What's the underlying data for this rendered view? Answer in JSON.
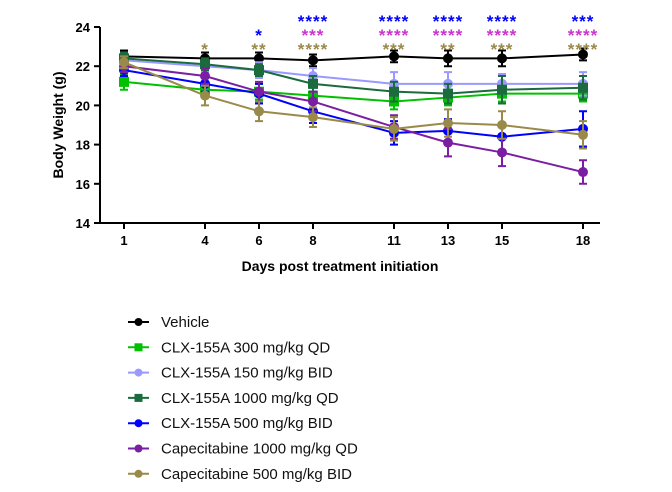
{
  "chart_data": {
    "type": "line",
    "xlabel": "Days post treatment initiation",
    "ylabel": "Body  Weight (g)",
    "x": [
      1,
      4,
      6,
      8,
      11,
      13,
      15,
      18
    ],
    "xticks": [
      "1",
      "4",
      "6",
      "8",
      "11",
      "13",
      "15",
      "18"
    ],
    "ylim": [
      14,
      24
    ],
    "yticks": [
      "14",
      "16",
      "18",
      "20",
      "22",
      "24"
    ],
    "grid": false,
    "legend_position": "bottom",
    "series": [
      {
        "name": "Vehicle",
        "color": "#000000",
        "marker": "circle",
        "values": [
          22.5,
          22.4,
          22.4,
          22.3,
          22.5,
          22.4,
          22.4,
          22.6
        ],
        "errors": [
          0.3,
          0.3,
          0.3,
          0.3,
          0.3,
          0.4,
          0.4,
          0.3
        ]
      },
      {
        "name": "CLX-155A 300 mg/kg QD",
        "color": "#00c000",
        "marker": "square",
        "values": [
          21.2,
          20.8,
          20.7,
          20.5,
          20.2,
          20.4,
          20.6,
          20.6
        ],
        "errors": [
          0.4,
          0.4,
          0.4,
          0.4,
          0.4,
          0.4,
          0.4,
          0.4
        ]
      },
      {
        "name": "CLX-155A 150 mg/kg BID",
        "color": "#9999ff",
        "marker": "circle",
        "values": [
          22.3,
          22.0,
          21.8,
          21.5,
          21.1,
          21.1,
          21.1,
          21.1
        ],
        "errors": [
          0.3,
          0.3,
          0.4,
          0.4,
          0.6,
          0.6,
          0.5,
          0.6
        ]
      },
      {
        "name": "CLX-155A 1000 mg/kg QD",
        "color": "#1b6b3e",
        "marker": "square",
        "values": [
          22.4,
          22.1,
          21.8,
          21.1,
          20.7,
          20.6,
          20.8,
          20.9
        ],
        "errors": [
          0.3,
          0.3,
          0.3,
          0.4,
          0.5,
          0.5,
          0.7,
          0.6
        ]
      },
      {
        "name": "CLX-155A 500 mg/kg BID",
        "color": "#0000ff",
        "marker": "circle",
        "values": [
          21.8,
          21.1,
          20.6,
          19.7,
          18.6,
          18.7,
          18.4,
          18.8
        ],
        "errors": [
          0.3,
          0.4,
          0.5,
          0.6,
          0.6,
          0.6,
          0.7,
          0.9
        ]
      },
      {
        "name": "Capecitabine 1000 mg/kg QD",
        "color": "#7b1fa2",
        "marker": "circle",
        "values": [
          22.0,
          21.5,
          20.7,
          20.2,
          18.9,
          18.1,
          17.6,
          16.6
        ],
        "errors": [
          0.3,
          0.4,
          0.5,
          0.5,
          0.6,
          0.7,
          0.7,
          0.6
        ]
      },
      {
        "name": "Capecitabine 500 mg/kg BID",
        "color": "#9a8a4a",
        "marker": "circle",
        "values": [
          22.2,
          20.5,
          19.7,
          19.4,
          18.8,
          19.1,
          19.0,
          18.5
        ],
        "errors": [
          0.3,
          0.5,
          0.5,
          0.5,
          0.6,
          0.7,
          0.7,
          0.7
        ]
      }
    ],
    "annotations": [
      {
        "x": 4,
        "rows": [
          {
            "text": "*",
            "color": "#9a8a4a",
            "level": 3
          }
        ]
      },
      {
        "x": 6,
        "rows": [
          {
            "text": "*",
            "color": "#0000ff",
            "level": 2
          },
          {
            "text": "**",
            "color": "#9a8a4a",
            "level": 3
          }
        ]
      },
      {
        "x": 8,
        "rows": [
          {
            "text": "****",
            "color": "#0000ff",
            "level": 1
          },
          {
            "text": "***",
            "color": "#cc33cc",
            "level": 2
          },
          {
            "text": "****",
            "color": "#9a8a4a",
            "level": 3
          }
        ]
      },
      {
        "x": 11,
        "rows": [
          {
            "text": "****",
            "color": "#0000ff",
            "level": 1
          },
          {
            "text": "****",
            "color": "#cc33cc",
            "level": 2
          },
          {
            "text": "***",
            "color": "#9a8a4a",
            "level": 3
          }
        ]
      },
      {
        "x": 13,
        "rows": [
          {
            "text": "****",
            "color": "#0000ff",
            "level": 1
          },
          {
            "text": "****",
            "color": "#cc33cc",
            "level": 2
          },
          {
            "text": "**",
            "color": "#9a8a4a",
            "level": 3
          }
        ]
      },
      {
        "x": 15,
        "rows": [
          {
            "text": "****",
            "color": "#0000ff",
            "level": 1
          },
          {
            "text": "****",
            "color": "#cc33cc",
            "level": 2
          },
          {
            "text": "***",
            "color": "#9a8a4a",
            "level": 3
          }
        ]
      },
      {
        "x": 18,
        "rows": [
          {
            "text": "***",
            "color": "#0000ff",
            "level": 1
          },
          {
            "text": "****",
            "color": "#cc33cc",
            "level": 2
          },
          {
            "text": "****",
            "color": "#9a8a4a",
            "level": 3
          }
        ]
      }
    ]
  }
}
